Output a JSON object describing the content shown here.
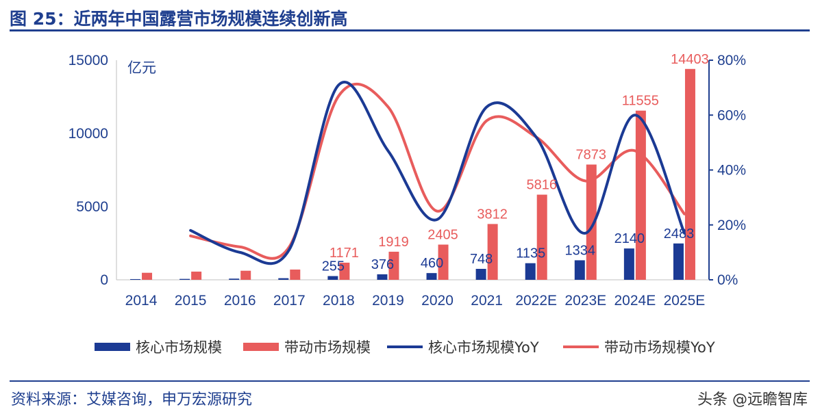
{
  "header": {
    "title": "图 25：近两年中国露营市场规模连续创新高"
  },
  "footer": {
    "source": "资料来源：艾媒咨询，申万宏源研究",
    "watermark": "头条 @远瞻智库"
  },
  "colors": {
    "title": "#1f3f8f",
    "core": "#1b3a94",
    "driven": "#e85c5c",
    "axis": "#1f3f8f"
  },
  "chart_data": {
    "type": "bar",
    "unit_label": "亿元",
    "categories": [
      "2014",
      "2015",
      "2016",
      "2017",
      "2018",
      "2019",
      "2020",
      "2021",
      "2022E",
      "2023E",
      "2024E",
      "2025E"
    ],
    "ylim": [
      0,
      15000
    ],
    "yticks": [
      0,
      5000,
      10000,
      15000
    ],
    "y2lim": [
      0,
      80
    ],
    "y2ticks": [
      "0%",
      "20%",
      "40%",
      "60%",
      "80%"
    ],
    "y2tick_values": [
      0,
      20,
      40,
      60,
      80
    ],
    "legend_position": "bottom",
    "series": [
      {
        "name": "核心市场规模",
        "kind": "bar",
        "color": "#1b3a94",
        "values": [
          48,
          62,
          80,
          110,
          255,
          376,
          460,
          748,
          1135,
          1334,
          2140,
          2483
        ],
        "labels": [
          "",
          "",
          "",
          "",
          "255",
          "376",
          "460",
          "748",
          "1135",
          "1334",
          "2140",
          "2483"
        ]
      },
      {
        "name": "带动市场规模",
        "kind": "bar",
        "color": "#e85c5c",
        "values": [
          480,
          560,
          620,
          700,
          1171,
          1919,
          2405,
          3812,
          5816,
          7873,
          11555,
          14403
        ],
        "labels": [
          "",
          "",
          "",
          "",
          "1171",
          "1919",
          "2405",
          "3812",
          "5816",
          "7873",
          "11555",
          "14403"
        ]
      },
      {
        "name": "核心市场规模YoY",
        "kind": "line",
        "axis": "right",
        "color": "#1b3a94",
        "x": [
          "2015",
          "2016",
          "2017",
          "2018",
          "2019",
          "2020",
          "2021",
          "2022E",
          "2023E",
          "2024E",
          "2025E"
        ],
        "values": [
          18,
          10,
          11,
          71,
          47,
          22,
          63,
          52,
          17,
          60,
          17
        ]
      },
      {
        "name": "带动市场规模YoY",
        "kind": "line",
        "axis": "right",
        "color": "#e85c5c",
        "x": [
          "2015",
          "2016",
          "2017",
          "2018",
          "2019",
          "2020",
          "2021",
          "2022E",
          "2023E",
          "2024E",
          "2025E"
        ],
        "values": [
          16,
          12,
          12,
          67,
          63,
          25,
          58,
          52,
          36,
          47,
          24
        ]
      }
    ]
  }
}
